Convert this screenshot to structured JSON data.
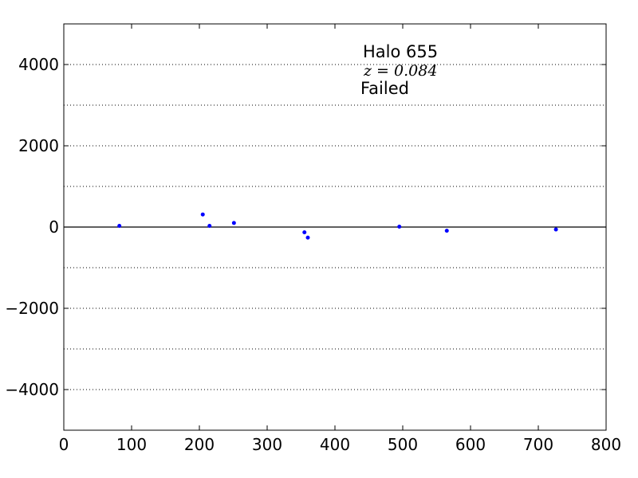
{
  "chart_data": {
    "type": "scatter",
    "title": "",
    "xlabel": "",
    "ylabel": "",
    "xlim": [
      0,
      800
    ],
    "ylim": [
      -5000,
      5000
    ],
    "xticks": [
      0,
      100,
      200,
      300,
      400,
      500,
      600,
      700,
      800
    ],
    "yticks": [
      -4000,
      -2000,
      0,
      2000,
      4000
    ],
    "xtick_labels": [
      "0",
      "100",
      "200",
      "300",
      "400",
      "500",
      "600",
      "700",
      "800"
    ],
    "ytick_labels": [
      "−4000",
      "−2000",
      "0",
      "2000",
      "4000"
    ],
    "grid": "horizontal dotted every 1000",
    "gridlines_y": [
      -4000,
      -3000,
      -2000,
      -1000,
      1000,
      2000,
      3000,
      4000
    ],
    "zero_line": 0,
    "point_color": "#0000ff",
    "series": [
      {
        "x": [
          82,
          205,
          215,
          251,
          355,
          360,
          495,
          565,
          726
        ],
        "y": [
          30,
          310,
          30,
          100,
          -130,
          -260,
          10,
          -90,
          -60
        ]
      }
    ],
    "annotations": {
      "halo": "Halo 655",
      "redshift": "z = 0.084",
      "status": "Failed"
    }
  }
}
